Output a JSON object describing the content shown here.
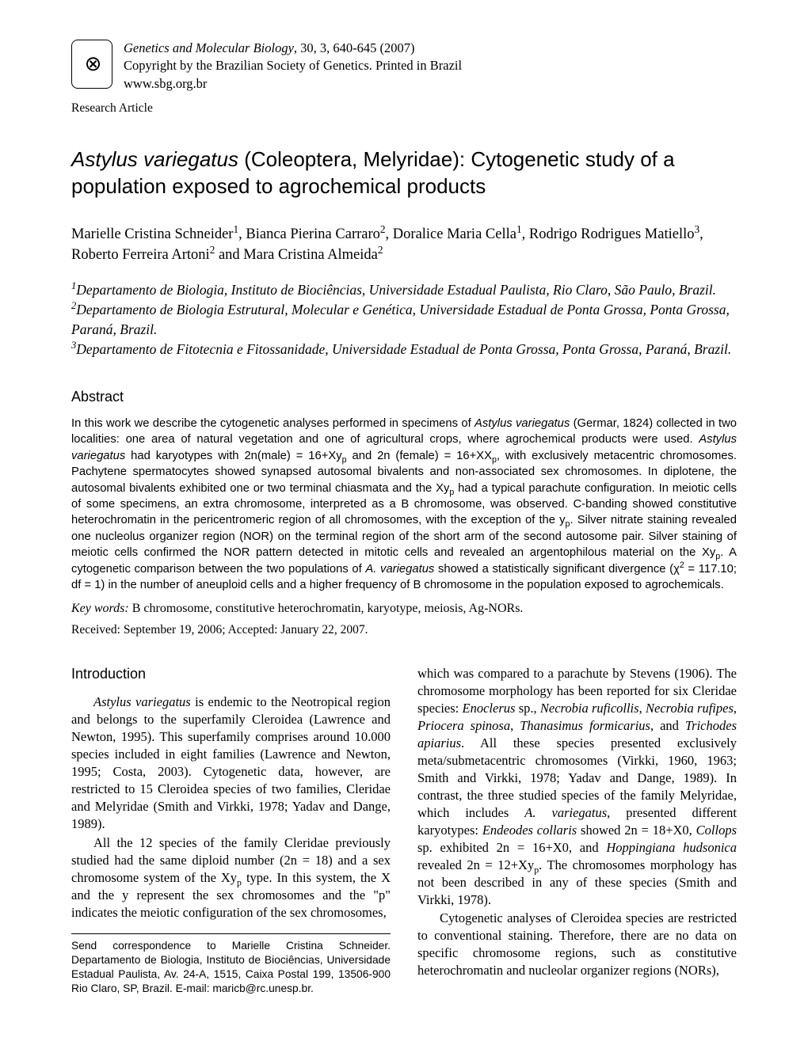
{
  "journal": {
    "name_italic": "Genetics and Molecular Biology",
    "citation": ", 30, 3, 640-645 (2007)",
    "copyright": "Copyright by the Brazilian Society of Genetics. Printed in Brazil",
    "url": "www.sbg.org.br"
  },
  "article_type": "Research Article",
  "title": {
    "species": "Astylus variegatus",
    "rest": " (Coleoptera, Melyridae): Cytogenetic study of a population exposed to agrochemical products"
  },
  "authors_html": "Marielle Cristina Schneider<sup>1</sup>, Bianca Pierina Carraro<sup>2</sup>, Doralice Maria Cella<sup>1</sup>, Rodrigo Rodrigues Matiello<sup>3</sup>, Roberto Ferreira Artoni<sup>2</sup> and Mara Cristina Almeida<sup>2</sup>",
  "affiliations_html": "<sup>1</sup>Departamento de Biologia, Instituto de Biociências, Universidade Estadual Paulista, Rio Claro, São Paulo, Brazil.<br><sup>2</sup>Departamento de Biologia Estrutural, Molecular e Genética, Universidade Estadual de Ponta Grossa, Ponta Grossa, Paraná, Brazil.<br><sup>3</sup>Departamento de Fitotecnia e Fitossanidade, Universidade Estadual de Ponta Grossa, Ponta Grossa, Paraná, Brazil.",
  "abstract_heading": "Abstract",
  "abstract_html": "In this work we describe the cytogenetic analyses performed in specimens of <span class=\"ital\">Astylus variegatus</span> (Germar, 1824) collected in two localities: one area of natural vegetation and one of agricultural crops, where agrochemical products were used. <span class=\"ital\">Astylus variegatus</span> had karyotypes with 2n(male) = 16+Xy<sub>p</sub> and 2n (female) = 16+XX<sub>p</sub>, with exclusively metacentric chromosomes. Pachytene spermatocytes showed synapsed autosomal bivalents and non-associated sex chromosomes. In diplotene, the autosomal bivalents exhibited one or two terminal chiasmata and the Xy<sub>p</sub> had a typical parachute configuration. In meiotic cells of some specimens, an extra chromosome, interpreted as a B chromosome, was observed. C-banding showed constitutive heterochromatin in the pericentromeric region of all chromosomes, with the exception of the y<sub>p</sub>. Silver nitrate staining revealed one nucleolus organizer region (NOR) on the terminal region of the short arm of the second autosome pair. Silver staining of meiotic cells confirmed the NOR pattern detected in mitotic cells and revealed an argentophilous material on the Xy<sub>p</sub>. A cytogenetic comparison between the two populations of <span class=\"ital\">A. variegatus</span> showed a statistically significant divergence (χ<sup>2</sup> = 117.10; df = 1) in the number of aneuploid cells and a higher frequency of B chromosome in the population exposed to agrochemicals.",
  "keywords": {
    "label": "Key words:",
    "text": " B chromosome, constitutive heterochromatin, karyotype, meiosis, Ag-NORs."
  },
  "dates": "Received: September 19, 2006; Accepted: January 22, 2007.",
  "intro_heading": "Introduction",
  "intro_left_html": "<p><span class=\"ital\">Astylus variegatus</span> is endemic to the Neotropical region and belongs to the superfamily Cleroidea (Lawrence and Newton, 1995). This superfamily comprises around 10.000 species included in eight families (Lawrence and Newton, 1995; Costa, 2003). Cytogenetic data, however, are restricted to 15 Cleroidea species of two families, Cleridae and Melyridae (Smith and Virkki, 1978; Yadav and Dange, 1989).</p><p>All the 12 species of the family Cleridae previously studied had the same diploid number (2n = 18) and a sex chromosome system of the Xy<sub>p</sub> type. In this system, the X and the y represent the sex chromosomes and the \"p\" indicates the meiotic configuration of the sex chromosomes,</p>",
  "intro_right_html": "<p class=\"noindent\">which was compared to a parachute by Stevens (1906). The chromosome morphology has been reported for six Cleridae species: <span class=\"ital\">Enoclerus</span> sp., <span class=\"ital\">Necrobia ruficollis</span>, <span class=\"ital\">Necrobia rufipes</span>, <span class=\"ital\">Priocera spinosa</span>, <span class=\"ital\">Thanasimus formicarius</span>, and <span class=\"ital\">Trichodes apiarius</span>. All these species presented exclusively meta/submetacentric chromosomes (Virkki, 1960, 1963; Smith and Virkki, 1978; Yadav and Dange, 1989). In contrast, the three studied species of the family Melyridae, which includes <span class=\"ital\">A. variegatus</span>, presented different karyotypes: <span class=\"ital\">Endeodes collaris</span> showed 2n = 18+X0, <span class=\"ital\">Collops</span> sp. exhibited 2n = 16+X0, and <span class=\"ital\">Hoppingiana hudsonica</span> revealed 2n = 12+Xy<sub>p</sub>. The chromosomes morphology has not been described in any of these species (Smith and Virkki, 1978).</p><p>Cytogenetic analyses of Cleroidea species are restricted to conventional staining. Therefore, there are no data on specific chromosome regions, such as constitutive heterochromatin and nucleolar organizer regions (NORs),</p>",
  "correspondence": "Send correspondence to Marielle Cristina Schneider. Departamento de Biologia, Instituto de Biociências, Universidade Estadual Paulista, Av. 24-A, 1515, Caixa Postal 199, 13506-900 Rio Claro, SP, Brazil. E-mail: maricb@rc.unesp.br."
}
